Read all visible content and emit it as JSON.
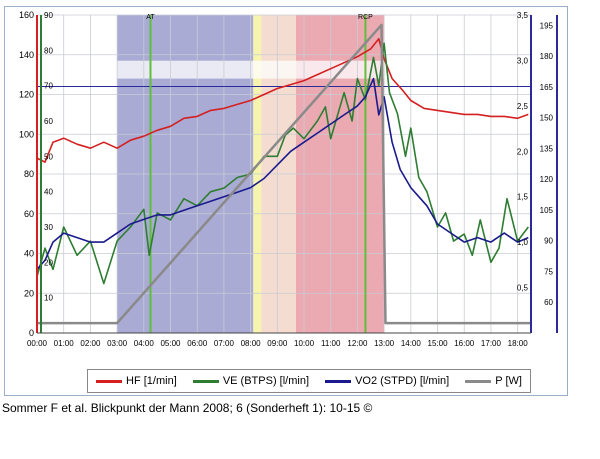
{
  "caption": "Sommer F et al. Blickpunkt der Mann 2008; 6 (Sonderheft 1): 10-15 ©",
  "chart_data": {
    "type": "line",
    "x_ticks": [
      "00:00",
      "01:00",
      "02:00",
      "03:00",
      "04:00",
      "05:00",
      "06:00",
      "07:00",
      "08:00",
      "09:00",
      "10:00",
      "11:00",
      "12:00",
      "13:00",
      "14:00",
      "15:00",
      "16:00",
      "17:00",
      "18:00"
    ],
    "xlim": [
      0,
      18.5
    ],
    "axes": {
      "hf": {
        "ticks": [
          0,
          20,
          40,
          60,
          80,
          100,
          120,
          140,
          160
        ],
        "range": [
          0,
          160
        ],
        "color": "#d42020"
      },
      "ve": {
        "ticks": [
          0,
          10,
          20,
          30,
          40,
          50,
          60,
          70,
          80,
          90
        ],
        "range": [
          0,
          90
        ],
        "color": "#2e7d32"
      },
      "vo2": {
        "ticks": [
          "0,5",
          "1,0",
          "1,5",
          "2,0",
          "2,5",
          "3,0",
          "3,5"
        ],
        "tick_values": [
          0.5,
          1.0,
          1.5,
          2.0,
          2.5,
          3.0,
          3.5
        ],
        "range": [
          0,
          3.5
        ],
        "color": "#1a1a8c"
      },
      "p": {
        "ticks": [
          60,
          75,
          90,
          105,
          120,
          135,
          150,
          165,
          180,
          195
        ],
        "range": [
          45,
          200
        ],
        "color": "#1a1a8c"
      }
    },
    "zones": [
      {
        "from": 3.0,
        "to": 8.1,
        "color": "#9a9ccc"
      },
      {
        "from": 8.1,
        "to": 8.4,
        "color": "#f5f2a0"
      },
      {
        "from": 8.4,
        "to": 9.7,
        "color": "#f2d6c8"
      },
      {
        "from": 9.7,
        "to": 13.0,
        "color": "#e89aa4"
      }
    ],
    "markers": [
      {
        "label": "AT",
        "x": 4.25
      },
      {
        "label": "RCP",
        "x": 12.3
      }
    ],
    "series": [
      {
        "name": "HF [1/min]",
        "axis": "hf",
        "color": "#d42020",
        "x": [
          0,
          0.3,
          0.6,
          1,
          1.5,
          2,
          2.5,
          3,
          3.5,
          4,
          4.5,
          5,
          5.5,
          6,
          6.5,
          7,
          7.5,
          8,
          8.5,
          9,
          9.5,
          10,
          10.5,
          11,
          11.5,
          12,
          12.5,
          12.8,
          13,
          13.3,
          13.7,
          14,
          14.5,
          15,
          15.5,
          16,
          16.5,
          17,
          17.5,
          18,
          18.4
        ],
        "values": [
          88,
          86,
          96,
          98,
          95,
          93,
          96,
          93,
          97,
          99,
          102,
          104,
          108,
          109,
          112,
          113,
          115,
          117,
          120,
          123,
          125,
          127,
          130,
          133,
          136,
          139,
          143,
          148,
          138,
          128,
          122,
          117,
          113,
          112,
          111,
          110,
          110,
          109,
          109,
          108,
          110
        ]
      },
      {
        "name": "VE (BTPS) [l/min]",
        "axis": "ve",
        "color": "#2e7d32",
        "x": [
          0,
          0.3,
          0.6,
          1,
          1.5,
          2,
          2.5,
          3,
          3.5,
          4,
          4.2,
          4.5,
          5,
          5.5,
          6,
          6.5,
          7,
          7.5,
          8,
          8.5,
          9,
          9.3,
          9.6,
          10,
          10.5,
          10.8,
          11,
          11.5,
          11.8,
          12,
          12.3,
          12.6,
          12.8,
          13,
          13.2,
          13.5,
          13.8,
          14,
          14.3,
          14.6,
          15,
          15.3,
          15.6,
          16,
          16.3,
          16.6,
          17,
          17.3,
          17.6,
          18,
          18.4
        ],
        "values": [
          16,
          24,
          18,
          30,
          22,
          26,
          14,
          26,
          30,
          35,
          22,
          34,
          32,
          38,
          36,
          40,
          41,
          44,
          45,
          50,
          50,
          56,
          58,
          55,
          60,
          64,
          55,
          68,
          60,
          72,
          66,
          78,
          70,
          82,
          68,
          62,
          50,
          58,
          44,
          40,
          30,
          34,
          26,
          28,
          22,
          32,
          20,
          24,
          38,
          26,
          30
        ]
      },
      {
        "name": "VO2 (STPD) [l/min]",
        "axis": "vo2",
        "color": "#1a1a8c",
        "x": [
          0,
          0.3,
          0.6,
          1,
          1.5,
          2,
          2.5,
          3,
          3.5,
          4,
          4.5,
          5,
          5.5,
          6,
          6.5,
          7,
          7.5,
          8,
          8.5,
          9,
          9.5,
          10,
          10.5,
          11,
          11.5,
          12,
          12.3,
          12.6,
          12.8,
          13,
          13.3,
          13.6,
          14,
          14.3,
          14.6,
          15,
          15.5,
          16,
          16.5,
          17,
          17.5,
          18,
          18.4
        ],
        "values": [
          0.7,
          0.8,
          1.0,
          1.1,
          1.05,
          1.0,
          1.0,
          1.1,
          1.2,
          1.25,
          1.3,
          1.3,
          1.35,
          1.4,
          1.45,
          1.5,
          1.55,
          1.6,
          1.7,
          1.85,
          2.0,
          2.1,
          2.2,
          2.3,
          2.4,
          2.5,
          2.6,
          2.8,
          2.4,
          2.6,
          2.1,
          1.8,
          1.6,
          1.5,
          1.4,
          1.2,
          1.1,
          1.0,
          1.05,
          1.0,
          1.1,
          1.0,
          1.05
        ]
      },
      {
        "name": "P [W]",
        "axis": "hf",
        "color": "#8a8a8a",
        "x": [
          0,
          3,
          12.9,
          13.05,
          18.5
        ],
        "values": [
          5,
          5,
          155,
          5,
          5
        ]
      }
    ]
  }
}
